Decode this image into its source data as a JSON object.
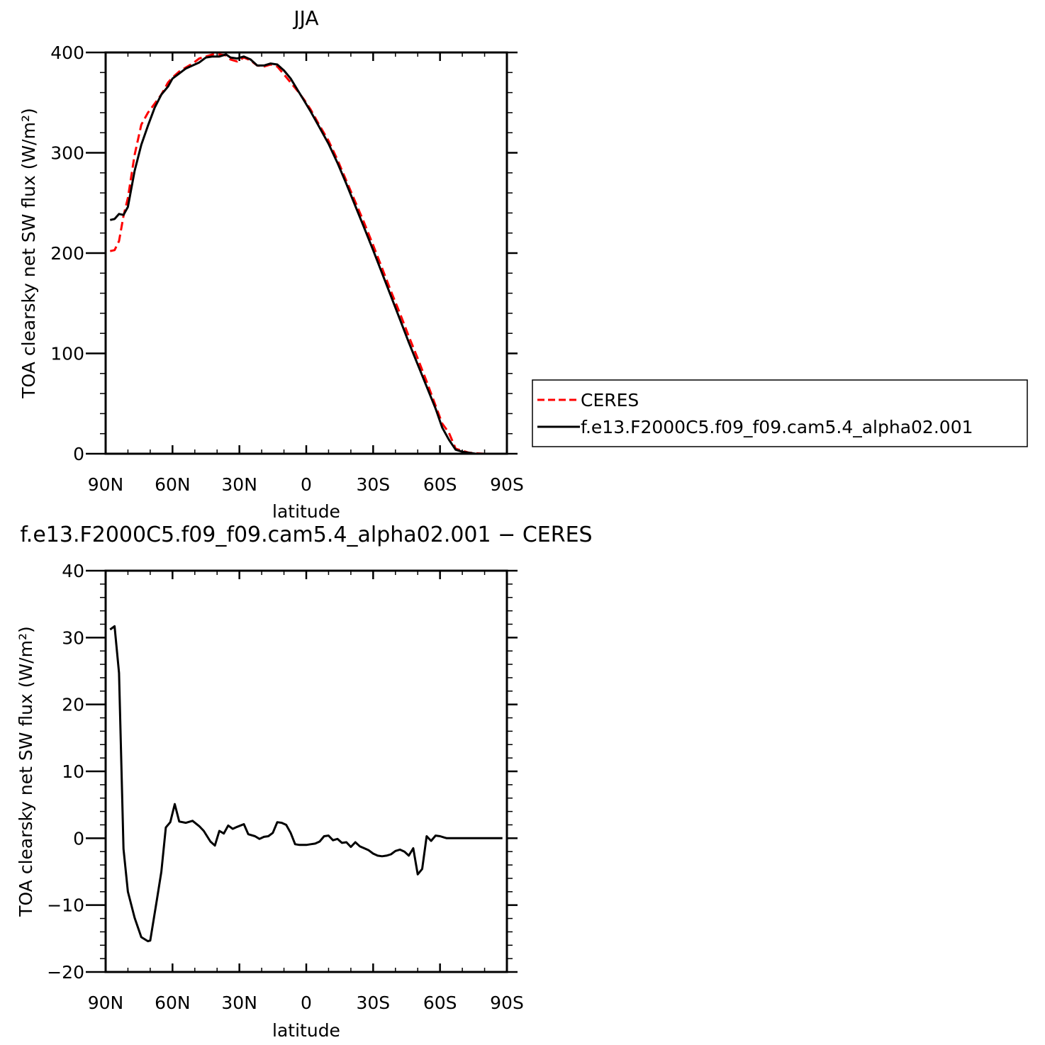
{
  "colors": {
    "obs": "#ff0000",
    "model": "#000000",
    "axis": "#000000",
    "background": "#ffffff"
  },
  "chart_data": [
    {
      "type": "line",
      "title": "JJA",
      "xlabel": "latitude",
      "ylabel": "TOA clearsky net SW flux (W/m²)",
      "xlim": [
        90,
        -90
      ],
      "ylim": [
        0,
        400
      ],
      "x_ticks": [
        {
          "value": 90,
          "label": "90N"
        },
        {
          "value": 60,
          "label": "60N"
        },
        {
          "value": 30,
          "label": "30N"
        },
        {
          "value": 0,
          "label": "0"
        },
        {
          "value": -30,
          "label": "30S"
        },
        {
          "value": -60,
          "label": "60S"
        },
        {
          "value": -90,
          "label": "90S"
        }
      ],
      "y_ticks": [
        {
          "value": 0,
          "label": "0"
        },
        {
          "value": 100,
          "label": "100"
        },
        {
          "value": 200,
          "label": "200"
        },
        {
          "value": 300,
          "label": "300"
        },
        {
          "value": 400,
          "label": "400"
        }
      ],
      "legend_position": "right",
      "series": [
        {
          "name": "CERES",
          "style": "dashed",
          "color": "#ff0000",
          "x": [
            88,
            86,
            84,
            82,
            80,
            77,
            74,
            71,
            68,
            65,
            62,
            60,
            57,
            54,
            51,
            48,
            45,
            42,
            39,
            36,
            34,
            31,
            28,
            25,
            22,
            19,
            16,
            13,
            10,
            7,
            4,
            1,
            -2,
            -6,
            -10,
            -14,
            -18,
            -22,
            -26,
            -30,
            -34,
            -38,
            -42,
            -46,
            -50,
            -54,
            -58,
            -61,
            -64,
            -67,
            -70,
            -73,
            -76,
            -80,
            -84,
            -88
          ],
          "y": [
            202,
            203,
            212,
            237,
            255,
            298,
            328,
            340,
            349,
            358,
            370,
            375,
            381,
            385,
            389,
            394,
            396,
            398,
            398,
            397,
            393,
            391,
            395,
            392,
            387,
            386,
            388,
            386,
            378,
            370,
            362,
            353,
            343,
            327,
            312,
            293,
            272,
            251,
            230,
            208,
            185,
            162,
            140,
            117,
            95,
            72,
            48,
            30,
            21,
            5,
            3,
            1,
            0.5,
            0,
            0,
            0
          ]
        },
        {
          "name": "f.e13.F2000C5.f09_f09.cam5.4_alpha02.001",
          "style": "solid",
          "color": "#000000",
          "x": [
            88,
            86,
            84,
            82,
            80,
            77,
            74,
            71,
            68,
            65,
            62,
            60,
            57,
            54,
            51,
            48,
            45,
            42,
            39,
            36,
            34,
            31,
            28,
            25,
            22,
            19,
            16,
            13,
            10,
            7,
            4,
            1,
            -2,
            -6,
            -10,
            -14,
            -18,
            -22,
            -26,
            -30,
            -34,
            -38,
            -42,
            -46,
            -50,
            -54,
            -58,
            -61,
            -64,
            -67,
            -70,
            -73,
            -76,
            -80,
            -84,
            -88
          ],
          "y": [
            233,
            234,
            239,
            238,
            246,
            282,
            308,
            327,
            345,
            358,
            366,
            374,
            379,
            384,
            387,
            390,
            395,
            396,
            396,
            398,
            395,
            394,
            396,
            393,
            387,
            387,
            389,
            388,
            382,
            374,
            363,
            352,
            341,
            325,
            309,
            290,
            269,
            247,
            225,
            203,
            180,
            157,
            134,
            111,
            89,
            67,
            45,
            26,
            14,
            4,
            2,
            1,
            0,
            0,
            0,
            0
          ]
        }
      ]
    },
    {
      "type": "line",
      "title": "f.e13.F2000C5.f09_f09.cam5.4_alpha02.001 − CERES",
      "xlabel": "latitude",
      "ylabel": "TOA clearsky net SW flux (W/m²)",
      "xlim": [
        90,
        -90
      ],
      "ylim": [
        -20,
        40
      ],
      "x_ticks": [
        {
          "value": 90,
          "label": "90N"
        },
        {
          "value": 60,
          "label": "60N"
        },
        {
          "value": 30,
          "label": "30N"
        },
        {
          "value": 0,
          "label": "0"
        },
        {
          "value": -30,
          "label": "30S"
        },
        {
          "value": -60,
          "label": "60S"
        },
        {
          "value": -90,
          "label": "90S"
        }
      ],
      "y_ticks": [
        {
          "value": -20,
          "label": "−20"
        },
        {
          "value": -10,
          "label": "−10"
        },
        {
          "value": 0,
          "label": "0"
        },
        {
          "value": 10,
          "label": "10"
        },
        {
          "value": 20,
          "label": "20"
        },
        {
          "value": 30,
          "label": "30"
        },
        {
          "value": 40,
          "label": "40"
        }
      ],
      "series": [
        {
          "style": "solid",
          "color": "#000000",
          "x": [
            88,
            86,
            84,
            82,
            80,
            77,
            74,
            71,
            70,
            67,
            65,
            63,
            61,
            59,
            57,
            54,
            51,
            48,
            46,
            43,
            41,
            39,
            37,
            35,
            33,
            31,
            28,
            26,
            23,
            21,
            19,
            17,
            15,
            13,
            11,
            9,
            7,
            5,
            3,
            0,
            -2,
            -4,
            -6,
            -8,
            -10,
            -12,
            -14,
            -16,
            -18,
            -20,
            -22,
            -24,
            -26,
            -28,
            -30,
            -32,
            -34,
            -36,
            -38,
            -40,
            -42,
            -44,
            -46,
            -48,
            -50,
            -52,
            -54,
            -56,
            -58,
            -60,
            -62,
            -63,
            -65,
            -67,
            -69,
            -71,
            -73,
            -75,
            -77,
            -80,
            -84,
            -88
          ],
          "y": [
            31.2,
            31.7,
            24.7,
            -1.6,
            -8,
            -11.9,
            -14.8,
            -15.4,
            -15.3,
            -9.2,
            -5,
            1.6,
            2.4,
            5.1,
            2.5,
            2.3,
            2.6,
            1.8,
            1.1,
            -0.5,
            -1.1,
            1.1,
            0.7,
            1.9,
            1.4,
            1.7,
            2.1,
            0.6,
            0.3,
            -0.1,
            0.2,
            0.3,
            0.8,
            2.4,
            2.3,
            2.0,
            0.8,
            -0.9,
            -1.0,
            -1.0,
            -0.9,
            -0.8,
            -0.5,
            0.3,
            0.4,
            -0.3,
            -0.1,
            -0.7,
            -0.6,
            -1.3,
            -0.6,
            -1.2,
            -1.5,
            -1.8,
            -2.3,
            -2.6,
            -2.7,
            -2.6,
            -2.4,
            -1.9,
            -1.7,
            -2.0,
            -2.6,
            -1.5,
            -5.4,
            -4.6,
            0.3,
            -0.4,
            0.4,
            0.3,
            0.1,
            0,
            0,
            0,
            0,
            0,
            0,
            0,
            0,
            0,
            0,
            0
          ]
        }
      ]
    }
  ]
}
